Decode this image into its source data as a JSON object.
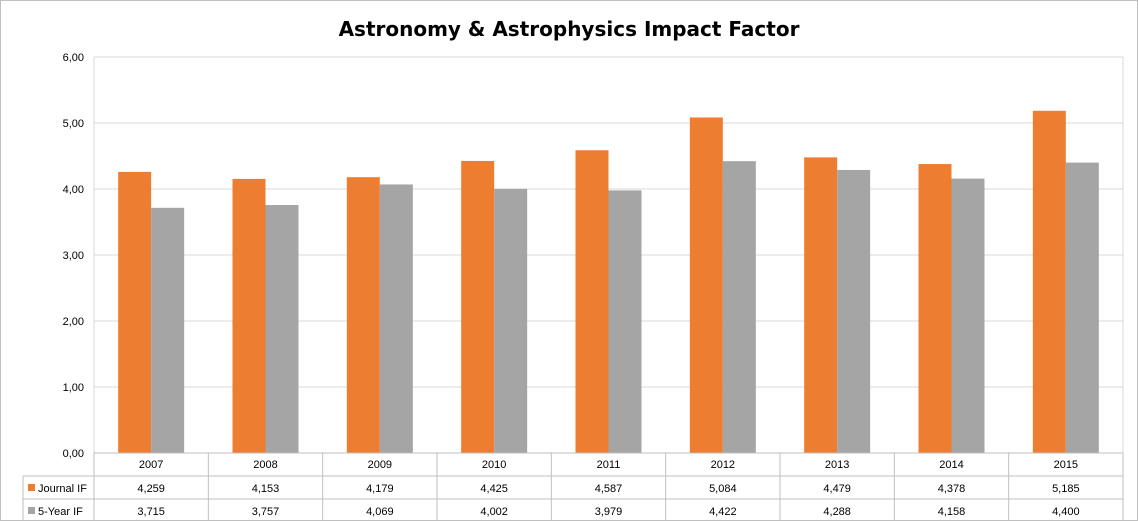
{
  "chart_data": {
    "type": "bar",
    "title": "Astronomy & Astrophysics Impact Factor",
    "categories": [
      "2007",
      "2008",
      "2009",
      "2010",
      "2011",
      "2012",
      "2013",
      "2014",
      "2015"
    ],
    "series": [
      {
        "name": "Journal IF",
        "color": "#ed7d31",
        "values": [
          4.259,
          4.153,
          4.179,
          4.425,
          4.587,
          5.084,
          4.479,
          4.378,
          5.185
        ],
        "labels": [
          "4,259",
          "4,153",
          "4,179",
          "4,425",
          "4,587",
          "5,084",
          "4,479",
          "4,378",
          "5,185"
        ]
      },
      {
        "name": "5-Year IF",
        "color": "#a5a5a5",
        "values": [
          3.715,
          3.757,
          4.069,
          4.002,
          3.979,
          4.422,
          4.288,
          4.158,
          4.4
        ],
        "labels": [
          "3,715",
          "3,757",
          "4,069",
          "4,002",
          "3,979",
          "4,422",
          "4,288",
          "4,158",
          "4,400"
        ]
      }
    ],
    "ylim": [
      0,
      6
    ],
    "yticks": [
      "0,00",
      "1,00",
      "2,00",
      "3,00",
      "4,00",
      "5,00",
      "6,00"
    ],
    "grid": true,
    "legend": "data table"
  }
}
